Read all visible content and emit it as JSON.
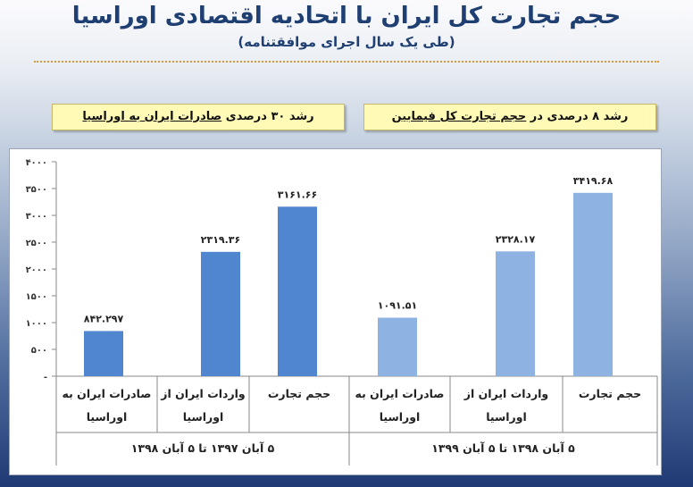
{
  "header": {
    "title": "حجم تجارت کل ایران با اتحادیه اقتصادی اوراسیا",
    "subtitle": "(طی یک سال اجرای موافقتنامه)"
  },
  "callouts": {
    "right": {
      "before": "رشد ۸ درصدی در ",
      "underlined": "حجم تجارت کل فیمابین"
    },
    "left": {
      "before": "رشد ۳۰ درصدی ",
      "underlined": "صادرات ایران به اوراسیا"
    }
  },
  "colors": {
    "period1": "#4f86cf",
    "period2": "#8eb3e3",
    "title": "#1f3f73",
    "callout_bg": "#fffbb7"
  },
  "chart_data": {
    "type": "bar",
    "ylim": [
      0,
      4000
    ],
    "yticks": [
      0,
      500,
      1000,
      1500,
      2000,
      2500,
      3000,
      3500,
      4000
    ],
    "ytick_labels": [
      "-",
      "۵۰۰",
      "۱۰۰۰",
      "۱۵۰۰",
      "۲۰۰۰",
      "۲۵۰۰",
      "۳۰۰۰",
      "۳۵۰۰",
      "۴۰۰۰"
    ],
    "grid": false,
    "groups": [
      {
        "label": "۵ آبان ۱۳۹۷ تا ۵ آبان ۱۳۹۸",
        "color_key": "period1"
      },
      {
        "label": "۵ آبان ۱۳۹۸ تا ۵ آبان ۱۳۹۹",
        "color_key": "period2"
      }
    ],
    "bars": [
      {
        "group": 0,
        "category_lines": [
          "صادرات ایران به",
          "اوراسیا"
        ],
        "value": 842.297,
        "label": "۸۴۲.۲۹۷"
      },
      {
        "group": 0,
        "category_lines": [
          "واردات ایران از",
          "اوراسیا"
        ],
        "value": 2319.36,
        "label": "۲۳۱۹.۳۶"
      },
      {
        "group": 0,
        "category_lines": [
          "حجم تجارت",
          ""
        ],
        "value": 3161.66,
        "label": "۳۱۶۱.۶۶"
      },
      {
        "group": 1,
        "category_lines": [
          "صادرات ایران به",
          "اوراسیا"
        ],
        "value": 1091.51,
        "label": "۱۰۹۱.۵۱"
      },
      {
        "group": 1,
        "category_lines": [
          "واردات ایران از",
          "اوراسیا"
        ],
        "value": 2328.17,
        "label": "۲۳۲۸.۱۷"
      },
      {
        "group": 1,
        "category_lines": [
          "حجم تجارت",
          ""
        ],
        "value": 3419.68,
        "label": "۳۴۱۹.۶۸"
      }
    ]
  }
}
